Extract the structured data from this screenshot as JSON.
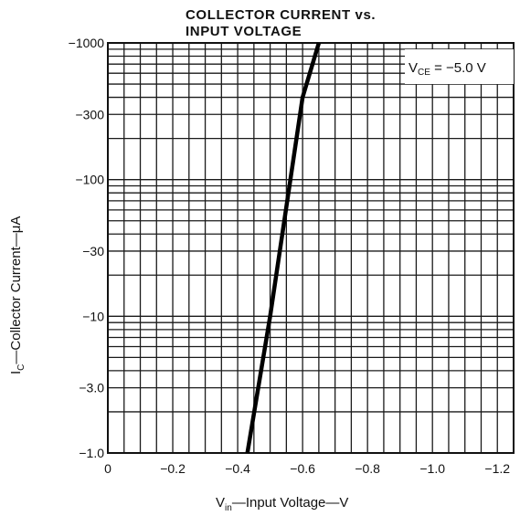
{
  "chart_data": {
    "type": "line",
    "title_line1": "COLLECTOR CURRENT vs.",
    "title_line2": "INPUT VOLTAGE",
    "xlabel": {
      "main": "V",
      "sub": "in",
      "rest": "—Input Voltage—V"
    },
    "ylabel": {
      "main": "I",
      "sub": "C",
      "rest": "—Collector Current—μA"
    },
    "annotation": {
      "main": "V",
      "sub": "CE",
      "rest": " = −5.0 V"
    },
    "x_ticks": [
      "0",
      "−0.2",
      "−0.4",
      "−0.6",
      "−0.8",
      "−1.0",
      "−1.2"
    ],
    "x_tick_values": [
      0,
      -0.2,
      -0.4,
      -0.6,
      -0.8,
      -1.0,
      -1.2
    ],
    "y_ticks": [
      "−1.0",
      "−3.0",
      "−10",
      "−30",
      "−100",
      "−300",
      "−1000"
    ],
    "y_tick_values": [
      -1,
      -3,
      -10,
      -30,
      -100,
      -300,
      -1000
    ],
    "y_scale": "log",
    "xlim": [
      0,
      -1.25
    ],
    "ylim": [
      -1,
      -1000
    ],
    "grid": true,
    "series": [
      {
        "x": [
          -0.43,
          -0.5,
          -0.6,
          -0.65
        ],
        "y": [
          -1,
          -10,
          -400,
          -1000
        ]
      }
    ]
  }
}
